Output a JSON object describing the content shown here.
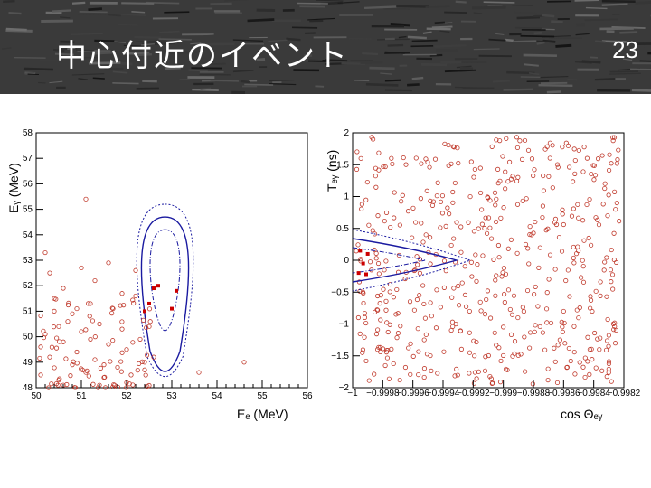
{
  "slide": {
    "title": "中心付近のイベント",
    "page_number": "23"
  },
  "chart_data": [
    {
      "type": "scatter",
      "xlabel": "Eₑ (MeV)",
      "ylabel": "Eᵧ (MeV)",
      "xlim": [
        50,
        56
      ],
      "ylim": [
        48,
        58
      ],
      "x_ticks": [
        "50",
        "51",
        "52",
        "53",
        "54",
        "55",
        "56"
      ],
      "y_ticks": [
        "48",
        "49",
        "50",
        "51",
        "52",
        "53",
        "54",
        "55",
        "56",
        "57",
        "58"
      ],
      "background_events": [
        [
          50.1,
          48.5
        ],
        [
          50.3,
          49.2
        ],
        [
          50.5,
          48.3
        ],
        [
          50.2,
          50.1
        ],
        [
          50.6,
          49.8
        ],
        [
          50.8,
          48.9
        ],
        [
          50.4,
          51.0
        ],
        [
          50.7,
          50.6
        ],
        [
          50.9,
          49.4
        ],
        [
          51.1,
          48.6
        ],
        [
          51.0,
          50.2
        ],
        [
          51.3,
          49.1
        ],
        [
          51.2,
          51.3
        ],
        [
          51.5,
          48.4
        ],
        [
          51.4,
          50.5
        ],
        [
          51.6,
          49.7
        ],
        [
          51.8,
          48.8
        ],
        [
          51.7,
          51.1
        ],
        [
          52.0,
          49.5
        ],
        [
          51.9,
          50.3
        ],
        [
          52.1,
          48.5
        ],
        [
          52.3,
          49.9
        ],
        [
          52.2,
          51.6
        ],
        [
          52.4,
          48.7
        ],
        [
          52.5,
          50.4
        ],
        [
          50.3,
          52.5
        ],
        [
          50.6,
          51.9
        ],
        [
          51.0,
          52.7
        ],
        [
          51.3,
          52.2
        ],
        [
          50.2,
          53.3
        ],
        [
          51.6,
          52.9
        ],
        [
          52.2,
          52.6
        ],
        [
          51.1,
          55.4
        ],
        [
          50.4,
          51.5
        ],
        [
          50.9,
          51.1
        ],
        [
          52.0,
          48.2
        ],
        [
          51.5,
          48.9
        ],
        [
          50.6,
          48.1
        ],
        [
          53.6,
          48.6
        ],
        [
          54.6,
          49.0
        ],
        [
          50.1,
          49.6
        ],
        [
          50.8,
          50.9
        ],
        [
          51.2,
          49.9
        ],
        [
          52.6,
          49.2
        ],
        [
          51.9,
          51.7
        ],
        [
          50.5,
          50.4
        ],
        [
          52.4,
          49.0
        ],
        [
          51.4,
          48.1
        ]
      ],
      "signal_events": [
        [
          52.6,
          51.9
        ],
        [
          52.7,
          52.0
        ],
        [
          52.5,
          51.3
        ],
        [
          52.4,
          51.0
        ],
        [
          53.0,
          51.1
        ],
        [
          53.1,
          51.8
        ]
      ],
      "contours": "nested signal contours (solid, dashed, dotted) centred near Eₑ≈52.8, Eᵧ≈52.5"
    },
    {
      "type": "scatter",
      "xlabel": "cos Θₑᵧ",
      "ylabel": "Tₑᵧ (ns)",
      "xlim": [
        -1,
        -0.9982
      ],
      "ylim": [
        -2,
        2
      ],
      "x_ticks": [
        "−1",
        "−0.9998",
        "−0.9996",
        "−0.9994",
        "−0.9992",
        "−0.999",
        "−0.9988",
        "−0.9986",
        "−0.9984",
        "−0.9982"
      ],
      "y_ticks": [
        "2",
        "1.5",
        "1",
        "0.5",
        "0",
        "−0.5",
        "−1",
        "−1.5",
        "−2"
      ],
      "background_event_count": 520,
      "signal_events": [
        [
          -0.99995,
          0.15
        ],
        [
          -0.99993,
          -0.05
        ],
        [
          -0.9999,
          0.1
        ],
        [
          -0.99996,
          -0.2
        ],
        [
          -0.99991,
          -0.22
        ]
      ],
      "contours": "nested signal contours (solid, dashed, dotted) centred near cos Θₑᵧ = −1, Tₑᵧ = 0"
    }
  ]
}
